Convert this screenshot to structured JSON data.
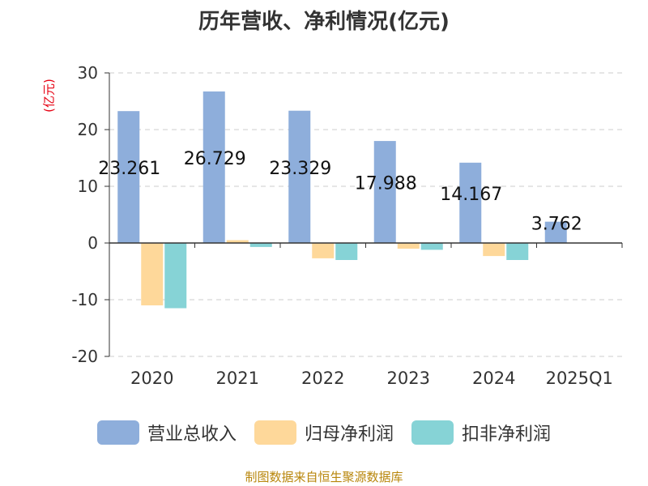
{
  "chart_data": {
    "type": "bar",
    "title": "历年营收、净利情况(亿元)",
    "ylabel": "(亿元)",
    "categories": [
      "2020",
      "2021",
      "2022",
      "2023",
      "2024",
      "2025Q1"
    ],
    "ylim": [
      -20,
      30
    ],
    "yticks": [
      30,
      20,
      10,
      0,
      -10,
      -20
    ],
    "grid": true,
    "legend_position": "bottom",
    "series": [
      {
        "name": "营业总收入",
        "color": "#8eaedb",
        "values": [
          23.261,
          26.729,
          23.329,
          17.988,
          14.167,
          3.762
        ],
        "labels": [
          "23.261",
          "26.729",
          "23.329",
          "17.988",
          "14.167",
          "3.762"
        ]
      },
      {
        "name": "归母净利润",
        "color": "#fed89a",
        "values": [
          -11.0,
          0.5,
          -2.7,
          -1.0,
          -2.3,
          0
        ]
      },
      {
        "name": "扣非净利润",
        "color": "#86d3d6",
        "values": [
          -11.5,
          -0.7,
          -3.0,
          -1.2,
          -3.0,
          0
        ]
      }
    ]
  },
  "footer": {
    "source": "制图数据来自恒生聚源数据库"
  }
}
